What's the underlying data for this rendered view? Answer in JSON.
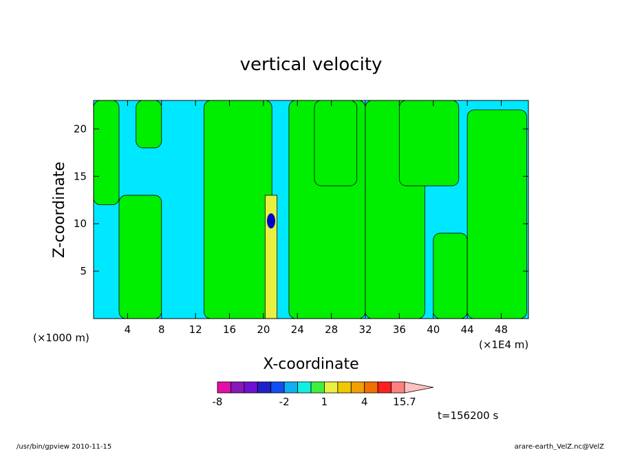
{
  "chart_data": {
    "type": "heatmap",
    "title": "vertical velocity",
    "xlabel": "X-coordinate",
    "ylabel": "Z-coordinate",
    "x_unit_left": "(×1000 m)",
    "x_unit_right": "(×1E4 m)",
    "x_ticks": [
      4,
      8,
      12,
      16,
      20,
      24,
      28,
      32,
      36,
      40,
      44,
      48
    ],
    "x_tick_labels": [
      "4",
      "8",
      "12",
      "16",
      "20",
      "24",
      "28",
      "32",
      "36",
      "40",
      "44",
      "48"
    ],
    "y_ticks": [
      5,
      10,
      15,
      20
    ],
    "y_tick_labels": [
      "5",
      "10",
      "15",
      "20"
    ],
    "xlim": [
      0,
      51.2
    ],
    "ylim": [
      0,
      23
    ],
    "colorbar": {
      "boundaries": [
        -8,
        -7,
        -6,
        -4,
        -3,
        -2,
        -1,
        0,
        1,
        2,
        3,
        4,
        8,
        11,
        15.7
      ],
      "colors": [
        "#e010a8",
        "#8818b8",
        "#7010d0",
        "#2020c8",
        "#1050f0",
        "#10b0f0",
        "#10f0e0",
        "#40f040",
        "#e8f040",
        "#f0c800",
        "#f0a000",
        "#f07000",
        "#ff2020",
        "#ff8080"
      ],
      "extend_color": "#ffc0c0",
      "labels": [
        "-8",
        "-2",
        "1",
        "4",
        "15.7"
      ],
      "label_values": [
        -8,
        -2,
        1,
        4,
        15.7
      ]
    },
    "field_colors": {
      "background": "#00e8ff",
      "positive": "#00ee00",
      "strong": "#0000c8",
      "weak_yellow": "#e8f040"
    },
    "updraft_regions": [
      {
        "x": [
          0,
          3
        ],
        "z": [
          12,
          23
        ]
      },
      {
        "x": [
          3,
          8
        ],
        "z": [
          0,
          13
        ]
      },
      {
        "x": [
          5,
          8
        ],
        "z": [
          18,
          23
        ]
      },
      {
        "x": [
          13,
          21
        ],
        "z": [
          0,
          23
        ]
      },
      {
        "x": [
          23,
          32
        ],
        "z": [
          0,
          23
        ]
      },
      {
        "x": [
          26,
          31
        ],
        "z": [
          14,
          23
        ]
      },
      {
        "x": [
          32,
          39
        ],
        "z": [
          0,
          23
        ]
      },
      {
        "x": [
          36,
          43
        ],
        "z": [
          14,
          23
        ]
      },
      {
        "x": [
          40,
          44
        ],
        "z": [
          0,
          9
        ]
      },
      {
        "x": [
          44,
          51
        ],
        "z": [
          0,
          22
        ]
      }
    ],
    "annotations": [
      "t=156200 s"
    ]
  },
  "footer": {
    "left": "/usr/bin/gpview   2010-11-15",
    "right": "arare-earth_VelZ.nc@VelZ"
  }
}
